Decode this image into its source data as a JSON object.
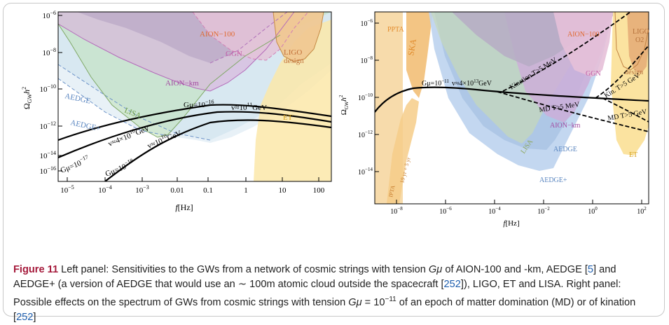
{
  "left_panel": {
    "ylabel": "Ω",
    "ylabel_sub": "GW",
    "ylabel_tail": "h",
    "ylabel_sup": "2",
    "xlabel": "f",
    "xlabel_unit": "[Hz]",
    "x_ticks": [
      {
        "base": "10",
        "exp": "−5"
      },
      {
        "base": "10",
        "exp": "−4"
      },
      {
        "base": "10",
        "exp": "−3"
      },
      {
        "base": "0.01",
        "exp": ""
      },
      {
        "base": "0.1",
        "exp": ""
      },
      {
        "base": "1",
        "exp": ""
      },
      {
        "base": "10",
        "exp": ""
      },
      {
        "base": "100",
        "exp": ""
      }
    ],
    "y_ticks": [
      {
        "base": "10",
        "exp": "−6"
      },
      {
        "base": "10",
        "exp": "−8"
      },
      {
        "base": "10",
        "exp": "−10"
      },
      {
        "base": "10",
        "exp": "−12"
      },
      {
        "base": "10",
        "exp": "−14"
      },
      {
        "base": "10",
        "exp": "−16"
      }
    ],
    "labels": {
      "aion100": "AION−100",
      "ggn": "GGN",
      "ligo_1": "LIGO",
      "ligo_2": "design",
      "aionkm": "AION−km",
      "aedge": "AEDGE",
      "aedgeplus": "AEDGE+",
      "lisa": "LISA",
      "et": "ET",
      "gmu16": "Gμ=10",
      "gmu16_exp": "−16",
      "v11": "v≈10",
      "v11_exp": "11",
      "v11_unit": "GeV",
      "v4e10": "v≈4×10",
      "v4e10_exp": "10",
      "v4e10_unit": "GeV",
      "v10": "v≈10",
      "v10_exp": "10",
      "v10_unit": "GeV",
      "gmu17": "Gμ=10",
      "gmu17_exp": "−17",
      "gmu18": "Gμ=10",
      "gmu18_exp": "−18"
    }
  },
  "right_panel": {
    "ylabel": "Ω",
    "ylabel_sub": "GW",
    "ylabel_tail": "h",
    "ylabel_sup": "2",
    "xlabel": "f",
    "xlabel_unit": "[Hz]",
    "x_ticks": [
      {
        "base": "10",
        "exp": "−8"
      },
      {
        "base": "10",
        "exp": "−6"
      },
      {
        "base": "10",
        "exp": "−4"
      },
      {
        "base": "10",
        "exp": "−2"
      },
      {
        "base": "10",
        "exp": "0"
      },
      {
        "base": "10",
        "exp": "2"
      }
    ],
    "y_ticks": [
      {
        "base": "10",
        "exp": "−6"
      },
      {
        "base": "10",
        "exp": "−8"
      },
      {
        "base": "10",
        "exp": "−10"
      },
      {
        "base": "10",
        "exp": "−12"
      },
      {
        "base": "10",
        "exp": "−14"
      }
    ],
    "labels": {
      "ppta": "PPTA",
      "ska": "SKA",
      "aion100": "AION−100",
      "ggn": "GGN",
      "ligo_1": "LIGO",
      "ligo_2": "O2",
      "ligo_design": "design",
      "kination": "Kination T>5 MeV",
      "kin_gev": "Kin. T>5 GeV",
      "gmu": "Gμ=10",
      "gmu_exp": "−11",
      "gmu_v": "v≈4×10",
      "gmu_v_exp": "13",
      "gmu_v_unit": "GeV",
      "md_mev": "MD T>5 MeV",
      "md_gev": "MD T>5 GeV",
      "aionkm": "AION−km",
      "aedge": "AEDGE",
      "aedgeplus": "AEDGE+",
      "lisa": "LISA",
      "et": "ET",
      "ipta_1": "IPTA",
      "ipta_2": "10 yr + 5 yr"
    }
  },
  "caption": {
    "figure_label": "Figure 11",
    "text_1": "  Left panel: Sensitivities to the GWs from a network of cosmic strings with tension ",
    "gmu": "Gμ",
    "text_2": " of AION-100 and -km, AEDGE [",
    "ref_5": "5",
    "text_3": "] and AEDGE+ (a version of AEDGE that would use an ∼ 100m atomic cloud outside the spacecraft [",
    "ref_252a": "252",
    "text_4": "]), LIGO, ET and LISA. Right panel: Possible effects on the spectrum of GWs from cosmic strings with tension ",
    "gmu2": "Gμ",
    "text_5": " = 10",
    "exp": "−11",
    "text_6": " of an epoch of matter domination (MD) or of kination [",
    "ref_252b": "252",
    "text_7": "]"
  }
}
